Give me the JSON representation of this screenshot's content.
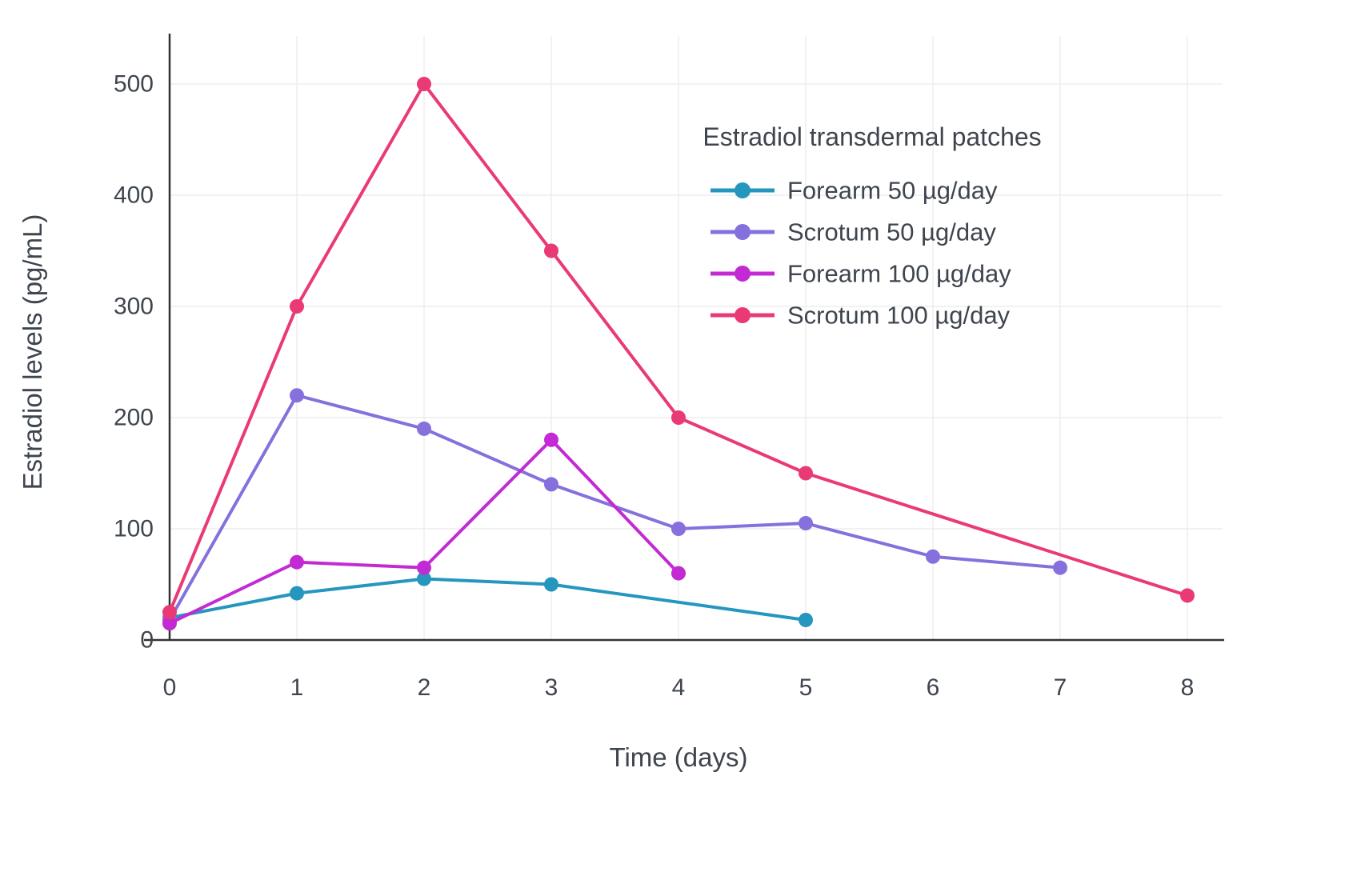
{
  "chart_data": {
    "type": "line",
    "title": "",
    "xlabel": "Time (days)",
    "ylabel": "Estradiol levels (pg/mL)",
    "xlim": [
      0,
      8
    ],
    "ylim": [
      0,
      500
    ],
    "xticks": [
      0,
      1,
      2,
      3,
      4,
      5,
      6,
      7,
      8
    ],
    "yticks": [
      0,
      100,
      200,
      300,
      400,
      500
    ],
    "grid": "light",
    "legend_title": "Estradiol transdermal patches",
    "legend_position": "upper-right-inside",
    "series": [
      {
        "name": "Forearm 50 µg/day",
        "color": "#2596be",
        "x": [
          0,
          1,
          2,
          3,
          5
        ],
        "y": [
          20,
          42,
          55,
          50,
          18
        ]
      },
      {
        "name": "Scrotum 50 µg/day",
        "color": "#8670dd",
        "x": [
          0,
          1,
          2,
          3,
          4,
          5,
          6,
          7
        ],
        "y": [
          18,
          220,
          190,
          140,
          100,
          105,
          75,
          65
        ]
      },
      {
        "name": "Forearm 100 µg/day",
        "color": "#c32ad4",
        "x": [
          0,
          1,
          2,
          3,
          4
        ],
        "y": [
          15,
          70,
          65,
          180,
          60
        ]
      },
      {
        "name": "Scrotum 100 µg/day",
        "color": "#ea3a76",
        "x": [
          0,
          1,
          2,
          3,
          4,
          5,
          8
        ],
        "y": [
          25,
          300,
          500,
          350,
          200,
          150,
          40
        ]
      }
    ]
  }
}
